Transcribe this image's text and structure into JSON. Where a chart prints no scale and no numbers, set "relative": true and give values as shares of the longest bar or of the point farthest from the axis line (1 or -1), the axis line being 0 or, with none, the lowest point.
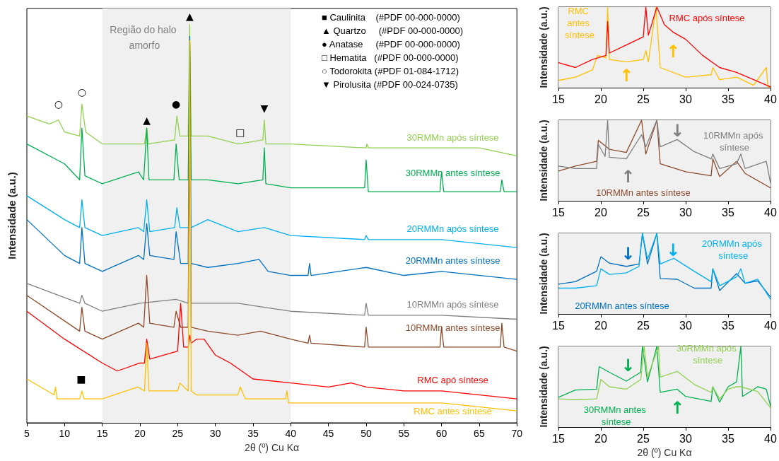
{
  "chart_data": [
    {
      "type": "line",
      "relative": true,
      "xlim": [
        5,
        70
      ],
      "xticks": [
        5,
        10,
        15,
        20,
        25,
        30,
        35,
        40,
        45,
        50,
        55,
        60,
        65,
        70
      ],
      "xlabel": "2θ (º) Cu Kα",
      "ylabel": "Intensidade (a.u.)",
      "marker": "none",
      "grid": false,
      "legend": false,
      "bands": [
        {
          "axis": "x",
          "from": 15,
          "to": 40,
          "label": "Região do halo amorfo",
          "color": "#f0f0f0"
        }
      ],
      "annotations": [
        "■ Caulinita    (#PDF 00-000-0000)",
        "▲ Quartzo     (#PDF 00-000-0000)",
        "● Anatase     (#PDF 00-000-0000)",
        "□ Hematita   (#PDF 00-000-0000)",
        "○ Todorokita (#PDF 01-084-1712)",
        "▼ Pirolusita (#PDF 00-024-0735)",
        "○",
        "○",
        "▲",
        "●",
        "▲",
        "□",
        "▼",
        "■"
      ],
      "series": [
        {
          "name": "30RMMn após síntese",
          "color": "#92d050",
          "x": [
            5,
            8,
            9.2,
            10,
            12,
            12.3,
            12.8,
            15,
            19.5,
            20.6,
            20.9,
            21.1,
            24.6,
            24.9,
            25.3,
            26.4,
            26.6,
            26.8,
            29,
            33,
            36.3,
            36.5,
            36.7,
            40,
            50,
            50.1,
            50.3,
            55,
            60,
            65,
            70
          ],
          "values": [
            0.77,
            0.75,
            0.76,
            0.73,
            0.72,
            0.8,
            0.73,
            0.7,
            0.7,
            0.7,
            0.74,
            0.7,
            0.71,
            0.77,
            0.72,
            0.72,
            1,
            0.72,
            0.72,
            0.7,
            0.71,
            0.76,
            0.7,
            0.7,
            0.69,
            0.7,
            0.69,
            0.69,
            0.69,
            0.69,
            0.67
          ]
        },
        {
          "name": "30RMMn antes síntese",
          "color": "#00b050",
          "x": [
            5,
            10,
            12,
            12.3,
            12.7,
            15,
            19.8,
            20.5,
            20.9,
            21.2,
            24.5,
            24.8,
            25.2,
            26.4,
            26.6,
            26.8,
            29,
            33,
            36.3,
            36.5,
            36.7,
            40,
            49.8,
            50,
            50.3,
            55,
            59.8,
            60,
            60.3,
            67.8,
            68,
            68.3,
            70
          ],
          "values": [
            0.7,
            0.65,
            0.61,
            0.74,
            0.62,
            0.6,
            0.63,
            0.61,
            0.74,
            0.61,
            0.61,
            0.7,
            0.61,
            0.61,
            0.96,
            0.61,
            0.61,
            0.6,
            0.61,
            0.69,
            0.6,
            0.59,
            0.59,
            0.66,
            0.58,
            0.58,
            0.58,
            0.63,
            0.58,
            0.58,
            0.61,
            0.58,
            0.58
          ]
        },
        {
          "name": "20RMMn após síntese",
          "color": "#00b0f0",
          "x": [
            5,
            10,
            12,
            12.3,
            12.7,
            15,
            19.8,
            20.5,
            20.9,
            21.3,
            24.6,
            24.9,
            25.3,
            26.4,
            26.6,
            26.8,
            29,
            33,
            36.5,
            40,
            49.8,
            50,
            50.3,
            55,
            60,
            70
          ],
          "values": [
            0.57,
            0.51,
            0.49,
            0.56,
            0.49,
            0.47,
            0.49,
            0.48,
            0.56,
            0.48,
            0.49,
            0.54,
            0.49,
            0.49,
            null,
            0.49,
            0.51,
            0.48,
            0.49,
            0.47,
            0.46,
            0.47,
            0.46,
            0.46,
            0.46,
            0.44
          ]
        },
        {
          "name": "20RMMn antes síntese",
          "color": "#0070c0",
          "x": [
            5,
            10,
            12,
            12.3,
            12.7,
            15,
            19.8,
            20.5,
            20.9,
            21.3,
            24.5,
            24.8,
            25.4,
            26.4,
            26.6,
            26.8,
            29,
            33,
            35.8,
            37,
            40,
            42.3,
            42.5,
            42.7,
            50,
            55,
            60,
            70
          ],
          "values": [
            0.51,
            0.42,
            0.4,
            0.49,
            0.4,
            0.38,
            0.42,
            0.41,
            0.5,
            0.42,
            0.41,
            0.48,
            0.4,
            0.4,
            0.97,
            0.4,
            0.39,
            0.4,
            0.41,
            0.38,
            0.37,
            0.37,
            0.4,
            0.37,
            0.39,
            0.37,
            0.38,
            0.36
          ]
        },
        {
          "name": "10RMMn após síntese",
          "color": "#7f7f7f",
          "x": [
            5,
            12,
            12.3,
            12.7,
            15,
            20,
            24.8,
            26.4,
            26.6,
            26.8,
            29,
            33,
            36.5,
            40,
            49.8,
            50,
            50.3,
            55,
            60,
            70
          ],
          "values": [
            0.35,
            0.3,
            0.32,
            0.3,
            0.28,
            0.3,
            0.31,
            0.3,
            0.7,
            0.3,
            0.3,
            0.3,
            0.29,
            0.28,
            0.27,
            0.3,
            0.27,
            0.27,
            0.27,
            0.26
          ]
        },
        {
          "name": "10RMMn antes síntese",
          "color": "#8c4a2a",
          "x": [
            5,
            12,
            12.3,
            12.7,
            15,
            19.8,
            20.5,
            20.9,
            21.3,
            24.5,
            24.8,
            25.4,
            26.4,
            26.6,
            26.8,
            29,
            33,
            36,
            40,
            42.3,
            42.5,
            42.7,
            49.8,
            50,
            50.3,
            59.8,
            60,
            60.3,
            67.8,
            68,
            68.3,
            70
          ],
          "values": [
            0.32,
            0.23,
            0.29,
            0.23,
            0.21,
            0.25,
            0.24,
            0.37,
            0.25,
            0.24,
            0.28,
            0.24,
            0.24,
            0.75,
            0.24,
            0.23,
            0.22,
            0.23,
            0.21,
            0.2,
            0.22,
            0.2,
            0.19,
            0.24,
            0.19,
            0.19,
            0.24,
            0.19,
            0.19,
            0.25,
            0.19,
            0.18
          ]
        },
        {
          "name": "RMC apó síntese",
          "color": "#ff0000",
          "x": [
            5,
            10,
            15,
            17,
            20,
            20.6,
            20.9,
            21.3,
            25,
            25.4,
            25.8,
            26.4,
            26.6,
            26.8,
            27.5,
            28.5,
            30,
            32,
            35,
            40,
            45,
            48,
            50,
            55,
            60,
            70
          ],
          "values": [
            0.28,
            0.21,
            0.15,
            0.13,
            0.15,
            0.15,
            0.21,
            0.16,
            0.18,
            0.3,
            0.19,
            0.19,
            0.22,
            0.2,
            0.21,
            0.21,
            0.17,
            0.15,
            0.11,
            0.1,
            0.09,
            0.1,
            0.09,
            0.08,
            0.08,
            0.06
          ]
        },
        {
          "name": "RMC antes síntese",
          "color": "#ffc000",
          "x": [
            5,
            8.6,
            8.8,
            9,
            12,
            12.3,
            12.6,
            15,
            19.7,
            20.6,
            20.9,
            21.2,
            25,
            25.3,
            26.4,
            26.6,
            26.8,
            27.5,
            33,
            33.3,
            34,
            36,
            39.3,
            39.5,
            39.7,
            40,
            50,
            55,
            60,
            70
          ],
          "values": [
            0.11,
            0.07,
            0.09,
            0.06,
            0.06,
            0.08,
            0.06,
            0.06,
            0.09,
            0.08,
            0.2,
            0.08,
            0.08,
            0.1,
            0.08,
            0.96,
            0.08,
            0.07,
            0.07,
            0.09,
            0.06,
            0.06,
            0.06,
            0.08,
            0.05,
            0.05,
            0.05,
            0.05,
            0.05,
            0.03
          ]
        }
      ]
    },
    {
      "type": "line",
      "relative": true,
      "xlim": [
        15,
        40
      ],
      "xticks": [
        15,
        20,
        25,
        30,
        35,
        40
      ],
      "ylabel": "Intensidade (a.u.)",
      "marker": "none",
      "grid": false,
      "legend": false,
      "bands": [
        {
          "axis": "x",
          "from": 15,
          "to": 40,
          "color": "#f0f0f0"
        }
      ],
      "annotations": [
        "↑",
        "↑"
      ],
      "series": [
        {
          "name": "RMC antes síntese",
          "color": "#ffc000",
          "x": [
            15,
            17,
            19,
            19.6,
            20.6,
            20.8,
            21,
            23,
            25,
            25.3,
            25.6,
            26.5,
            27,
            30,
            33,
            33.2,
            34,
            36,
            38,
            39.5,
            39.7,
            40
          ],
          "values": [
            0.09,
            0.13,
            0.22,
            0.4,
            0.37,
            1,
            0.35,
            0.32,
            0.35,
            0.46,
            0.32,
            1,
            0.25,
            0.13,
            0.16,
            0.25,
            0.1,
            0.13,
            0.03,
            0.25,
            0.01,
            0
          ]
        },
        {
          "name": "RMC após síntese",
          "color": "#ff0000",
          "x": [
            15,
            17,
            19,
            20.6,
            20.8,
            21,
            23,
            25,
            25.3,
            25.6,
            26.6,
            27.5,
            28.5,
            30,
            32,
            34,
            36,
            38,
            40
          ],
          "values": [
            0.31,
            0.25,
            0.35,
            0.4,
            0.82,
            0.43,
            0.53,
            0.63,
            1,
            0.65,
            1,
            0.78,
            0.69,
            0.6,
            0.4,
            0.25,
            0.19,
            0.1,
            0.01
          ]
        }
      ]
    },
    {
      "type": "line",
      "relative": true,
      "xlim": [
        15,
        40
      ],
      "xticks": [
        15,
        20,
        25,
        30,
        35,
        40
      ],
      "ylabel": "Intensidade (a.u.)",
      "marker": "none",
      "grid": false,
      "legend": false,
      "bands": [
        {
          "axis": "x",
          "from": 15,
          "to": 40,
          "color": "#f0f0f0"
        }
      ],
      "annotations": [
        "↑",
        "↓"
      ],
      "series": [
        {
          "name": "10RMMn antes síntese",
          "color": "#8c4a2a",
          "x": [
            15,
            17,
            19.5,
            19.7,
            21,
            23,
            24.8,
            25.3,
            26.6,
            27,
            30,
            33,
            33.2,
            34,
            36,
            37,
            40
          ],
          "values": [
            0.37,
            0.43,
            0.49,
            0.75,
            0.64,
            0.6,
            1,
            0.58,
            1,
            0.46,
            0.36,
            0.31,
            0.52,
            0.3,
            0.49,
            0.34,
            0.16
          ]
        },
        {
          "name": "10RMMn após síntese",
          "color": "#7f7f7f",
          "x": [
            15,
            17,
            19.5,
            19.7,
            20.5,
            20.8,
            21,
            23,
            24.8,
            25.3,
            26.6,
            27,
            29,
            31,
            33,
            33.2,
            34,
            36,
            36.5,
            37,
            39.5,
            40
          ],
          "values": [
            0.43,
            0.4,
            0.4,
            0.7,
            0.55,
            1,
            0.54,
            0.52,
            0.82,
            0.67,
            1,
            0.67,
            0.76,
            0.61,
            0.52,
            0.58,
            0.4,
            0.46,
            0.58,
            0.4,
            0.49,
            0.22
          ]
        }
      ]
    },
    {
      "type": "line",
      "relative": true,
      "xlim": [
        15,
        40
      ],
      "xticks": [
        15,
        20,
        25,
        30,
        35,
        40
      ],
      "ylabel": "Intensidade (a.u.)",
      "marker": "none",
      "grid": false,
      "legend": false,
      "bands": [
        {
          "axis": "x",
          "from": 15,
          "to": 40,
          "color": "#f0f0f0"
        }
      ],
      "annotations": [
        "↓",
        "↓"
      ],
      "series": [
        {
          "name": "20RMMn antes síntese",
          "color": "#0070c0",
          "x": [
            15,
            17,
            19.5,
            20,
            21,
            23,
            24.5,
            24.9,
            25.5,
            26.6,
            27,
            29,
            31,
            33,
            33.2,
            34,
            36,
            37,
            38.5,
            40
          ],
          "values": [
            0.37,
            0.4,
            0.53,
            0.71,
            0.63,
            0.59,
            0.62,
            1,
            0.62,
            1,
            0.44,
            0.43,
            0.32,
            0.32,
            0.56,
            0.29,
            0.5,
            0.38,
            0.41,
            0.21
          ]
        },
        {
          "name": "20RMMn após síntese",
          "color": "#00b0f0",
          "x": [
            15,
            17,
            19.5,
            20,
            21,
            23,
            24.5,
            24.9,
            25.5,
            26.6,
            27,
            28.6,
            31,
            33,
            33.2,
            34,
            36,
            36.5,
            37,
            38.5,
            40
          ],
          "values": [
            0.32,
            0.32,
            0.35,
            0.56,
            0.49,
            0.51,
            0.59,
            1,
            0.68,
            1,
            0.62,
            0.69,
            0.53,
            0.4,
            0.56,
            0.35,
            0.46,
            0.56,
            0.38,
            0.43,
            0.18
          ]
        }
      ]
    },
    {
      "type": "line",
      "relative": true,
      "xlim": [
        15,
        40
      ],
      "xticks": [
        15,
        20,
        25,
        30,
        35,
        40
      ],
      "xlabel": "2θ (º) Cu Kα",
      "ylabel": "Intensidade (a.u.)",
      "marker": "none",
      "grid": false,
      "legend": false,
      "bands": [
        {
          "axis": "x",
          "from": 15,
          "to": 40,
          "color": "#f0f0f0"
        }
      ],
      "annotations": [
        "↓",
        "↑"
      ],
      "series": [
        {
          "name": "30RMMn antes síntese",
          "color": "#00b050",
          "x": [
            15,
            17,
            19.5,
            19.8,
            21,
            23,
            24.7,
            24.9,
            25.5,
            26.6,
            27,
            29,
            30,
            33,
            33.2,
            34,
            35,
            36,
            36.5,
            36.7,
            38.5,
            39.5,
            40
          ],
          "values": [
            0.37,
            0.46,
            0.47,
            0.75,
            0.68,
            0.57,
            0.68,
            1,
            0.56,
            1,
            0.43,
            0.47,
            0.38,
            0.32,
            0.5,
            0.31,
            0.5,
            0.56,
            1,
            0.38,
            0.5,
            0.47,
            0.26
          ]
        },
        {
          "name": "30RMMn após síntese",
          "color": "#92d050",
          "x": [
            15,
            17,
            19.5,
            20,
            21,
            23,
            24.7,
            25.1,
            25.5,
            26.8,
            27,
            29,
            31,
            33,
            33.2,
            34,
            35,
            36,
            36.5,
            38.5,
            40
          ],
          "values": [
            0.35,
            0.34,
            0.35,
            0.59,
            0.5,
            0.47,
            0.59,
            1,
            0.62,
            1,
            0.62,
            0.69,
            0.53,
            0.43,
            0.5,
            0.35,
            0.47,
            0.5,
            0.5,
            0.44,
            0.24
          ]
        }
      ]
    }
  ]
}
